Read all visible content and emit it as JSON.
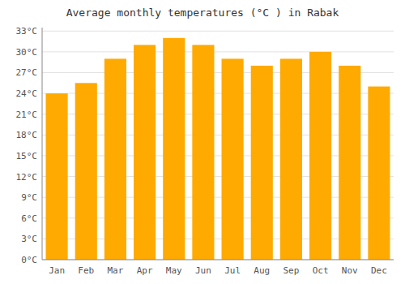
{
  "chart_data": {
    "type": "bar",
    "title": "Average monthly temperatures (°C ) in Rabak",
    "categories": [
      "Jan",
      "Feb",
      "Mar",
      "Apr",
      "May",
      "Jun",
      "Jul",
      "Aug",
      "Sep",
      "Oct",
      "Nov",
      "Dec"
    ],
    "values": [
      24,
      25.5,
      29,
      31,
      32,
      31,
      29,
      28,
      29,
      30,
      28,
      25
    ],
    "color": "#FFAA00",
    "ylim": [
      0,
      33.5
    ],
    "yticks": [
      {
        "value": 0,
        "label": "0°C"
      },
      {
        "value": 3,
        "label": "3°C"
      },
      {
        "value": 6,
        "label": "6°C"
      },
      {
        "value": 9,
        "label": "9°C"
      },
      {
        "value": 12,
        "label": "12°C"
      },
      {
        "value": 15,
        "label": "15°C"
      },
      {
        "value": 18,
        "label": "18°C"
      },
      {
        "value": 21,
        "label": "21°C"
      },
      {
        "value": 24,
        "label": "24°C"
      },
      {
        "value": 27,
        "label": "27°C"
      },
      {
        "value": 30,
        "label": "30°C"
      },
      {
        "value": 33,
        "label": "33°C"
      }
    ],
    "grid": true
  }
}
